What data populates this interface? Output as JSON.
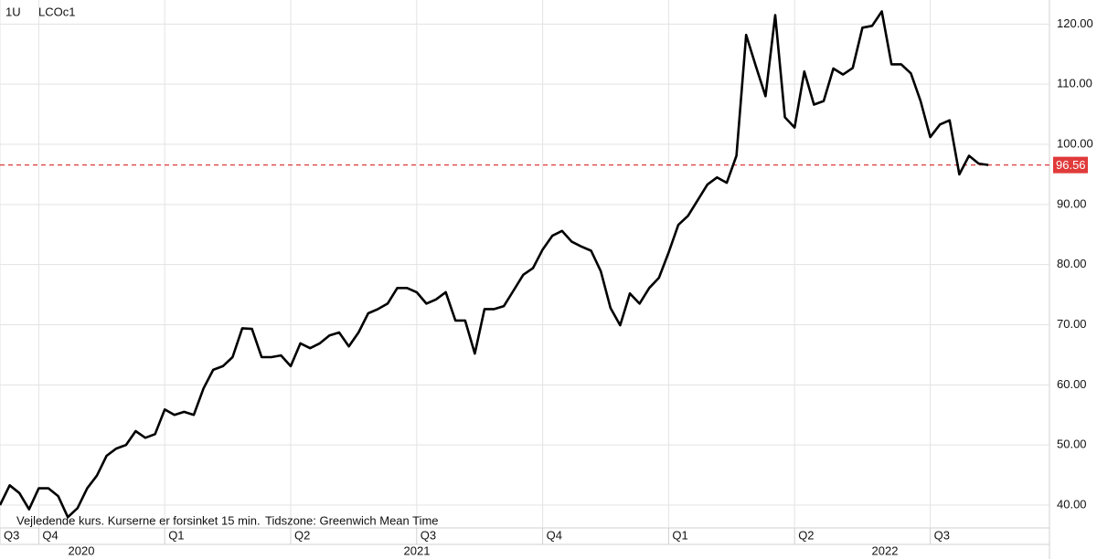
{
  "chart_data": {
    "type": "line",
    "interval": "1U",
    "symbol": "LCOc1",
    "note": "Vejledende kurs. Kurserne er forsinket 15 min.",
    "timezone": "Tidszone: Greenwich Mean Time",
    "categories": [
      "Q3",
      null,
      null,
      null,
      "Q4",
      null,
      null,
      null,
      null,
      null,
      null,
      null,
      null,
      null,
      null,
      null,
      null,
      "Q1",
      null,
      null,
      null,
      null,
      null,
      null,
      null,
      null,
      null,
      null,
      null,
      null,
      "Q2",
      null,
      null,
      null,
      null,
      null,
      null,
      null,
      null,
      null,
      null,
      null,
      null,
      "Q3",
      null,
      null,
      null,
      null,
      null,
      null,
      null,
      null,
      null,
      null,
      null,
      null,
      "Q4",
      null,
      null,
      null,
      null,
      null,
      null,
      null,
      null,
      null,
      null,
      null,
      null,
      "Q1",
      null,
      null,
      null,
      null,
      null,
      null,
      null,
      null,
      null,
      null,
      null,
      null,
      "Q2",
      null,
      null,
      null,
      null,
      null,
      null,
      null,
      null,
      null,
      null,
      null,
      null,
      null,
      "Q3",
      null,
      null,
      null,
      null,
      null,
      null
    ],
    "year_labels": [
      "2020",
      "2021",
      "2022"
    ],
    "series": [
      {
        "color": "#000000",
        "values": [
          40,
          43.3,
          42,
          39.3,
          42.8,
          42.8,
          41.5,
          38,
          39.5,
          42.8,
          44.9,
          48.2,
          49.4,
          50,
          52.3,
          51.2,
          51.8,
          55.9,
          55,
          55.5,
          55,
          59.4,
          62.5,
          63.1,
          64.6,
          69.4,
          69.3,
          64.6,
          64.6,
          64.9,
          63.1,
          66.9,
          66.1,
          66.9,
          68.2,
          68.7,
          66.4,
          68.7,
          71.9,
          72.6,
          73.5,
          76.1,
          76.1,
          75.4,
          73.5,
          74.2,
          75.4,
          70.7,
          70.7,
          65.2,
          72.6,
          72.6,
          73.1,
          75.7,
          78.3,
          79.4,
          82.5,
          84.8,
          85.6,
          83.8,
          83,
          82.3,
          78.9,
          72.8,
          69.9,
          75.2,
          73.5,
          76.1,
          77.8,
          82,
          86.6,
          88.1,
          90.7,
          93.3,
          94.5,
          93.6,
          98.1,
          118.2,
          113,
          108,
          121.5,
          104.5,
          102.8,
          112.1,
          106.6,
          107.2,
          112.6,
          111.6,
          112.7,
          119.4,
          119.7,
          122.1,
          113.3,
          113.3,
          111.8,
          107.2,
          101.2,
          103.3,
          104,
          95,
          98.1,
          96.8,
          96.56
        ]
      }
    ],
    "reference_line": {
      "value": 96.56,
      "label": "96.56",
      "color": "#e03a3a"
    },
    "ylim": [
      36.2,
      124
    ],
    "yticks": [
      {
        "value": 40,
        "label": "40.00"
      },
      {
        "value": 50,
        "label": "50.00"
      },
      {
        "value": 60,
        "label": "60.00"
      },
      {
        "value": 70,
        "label": "70.00"
      },
      {
        "value": 80,
        "label": "80.00"
      },
      {
        "value": 90,
        "label": "90.00"
      },
      {
        "value": 100,
        "label": "100.00"
      },
      {
        "value": 110,
        "label": "110.00"
      },
      {
        "value": 120,
        "label": "120.00"
      }
    ],
    "grid": true
  }
}
